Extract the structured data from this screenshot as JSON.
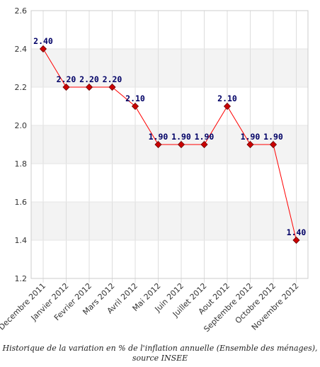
{
  "chart_data": {
    "type": "line",
    "categories": [
      "Decembre 2011",
      "Janvier 2012",
      "Fevrier 2012",
      "Mars 2012",
      "Avril 2012",
      "Mai 2012",
      "Juin 2012",
      "Juillet 2012",
      "Aout 2012",
      "Septembre 2012",
      "Octobre 2012",
      "Novembre 2012"
    ],
    "values": [
      2.4,
      2.2,
      2.2,
      2.2,
      2.1,
      1.9,
      1.9,
      1.9,
      2.1,
      1.9,
      1.9,
      1.4
    ],
    "data_labels": [
      "2.40",
      "2.20",
      "2.20",
      "2.20",
      "2.10",
      "1.90",
      "1.90",
      "1.90",
      "2.10",
      "1.90",
      "1.90",
      "1.40"
    ],
    "ylim": [
      1.2,
      2.6
    ],
    "yticks": [
      "1.2",
      "1.4",
      "1.6",
      "1.8",
      "2.0",
      "2.2",
      "2.4",
      "2.6"
    ],
    "grid": true,
    "line_color": "#ff0000",
    "marker_color": "#cc0000",
    "label_color": "#000066",
    "band_color": "#f3f3f3"
  },
  "caption": {
    "line1": "Historique de la variation en % de l'inflation annuelle (Ensemble des ménages),",
    "line2": "source INSEE"
  }
}
